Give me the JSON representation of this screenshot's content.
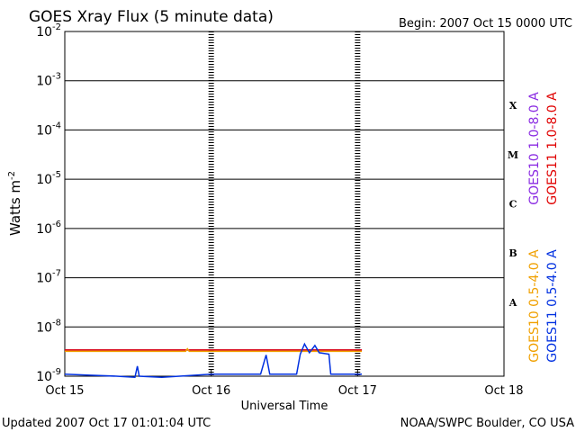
{
  "chart_data": {
    "type": "line",
    "title": "GOES Xray Flux (5 minute data)",
    "subtitle": "Begin:  2007 Oct 15 0000 UTC",
    "xlabel": "Universal Time",
    "ylabel": "Watts m",
    "ylabel_sup": "-2",
    "footer_left": "Updated 2007 Oct 17 01:01:04 UTC",
    "footer_right": "NOAA/SWPC Boulder, CO USA",
    "log_scale_y": true,
    "grid": true,
    "xlim": [
      0,
      72
    ],
    "xticks": [
      {
        "value": 0,
        "label": "Oct 15"
      },
      {
        "value": 24,
        "label": "Oct 16"
      },
      {
        "value": 48,
        "label": "Oct 17"
      },
      {
        "value": 72,
        "label": "Oct 18"
      }
    ],
    "ylim": [
      1e-09,
      0.01
    ],
    "yticks": [
      {
        "value": 1e-09,
        "label": "10",
        "sup": "-9"
      },
      {
        "value": 1e-08,
        "label": "10",
        "sup": "-8"
      },
      {
        "value": 1e-07,
        "label": "10",
        "sup": "-7"
      },
      {
        "value": 1e-06,
        "label": "10",
        "sup": "-6"
      },
      {
        "value": 1e-05,
        "label": "10",
        "sup": "-5"
      },
      {
        "value": 0.0001,
        "label": "10",
        "sup": "-4"
      },
      {
        "value": 0.001,
        "label": "10",
        "sup": "-3"
      },
      {
        "value": 0.01,
        "label": "10",
        "sup": "-2"
      }
    ],
    "class_labels": [
      {
        "value": 1e-08,
        "label": "A"
      },
      {
        "value": 1e-07,
        "label": "B"
      },
      {
        "value": 1e-06,
        "label": "C"
      },
      {
        "value": 1e-05,
        "label": "M"
      },
      {
        "value": 0.0001,
        "label": "X"
      }
    ],
    "series": [
      {
        "name": "GOES10 1.0-8.0 A",
        "color": "#8a2be2",
        "legend_group": "long",
        "x": [
          0,
          48.7
        ],
        "values": [
          3.4e-09,
          3.4e-09
        ]
      },
      {
        "name": "GOES11 1.0-8.0 A",
        "color": "#e00000",
        "legend_group": "long",
        "x": [
          0,
          48.7
        ],
        "values": [
          3.4e-09,
          3.4e-09
        ]
      },
      {
        "name": "GOES10 0.5-4.0 A",
        "color": "#f0a000",
        "legend_group": "short",
        "x": [
          0,
          19.8,
          20.1,
          20.4,
          48.7
        ],
        "values": [
          3.2e-09,
          3.2e-09,
          3.6e-09,
          3.2e-09,
          3.2e-09
        ]
      },
      {
        "name": "GOES11 0.5-4.0 A",
        "color": "#0030e0",
        "legend_group": "short",
        "x": [
          0,
          4.1,
          8.5,
          11.5,
          11.9,
          12.2,
          15.9,
          24,
          32.1,
          33,
          33.6,
          38,
          38.6,
          39.3,
          40.1,
          41,
          41.7,
          43.3,
          43.6,
          48.7
        ],
        "values": [
          1.1e-09,
          1.05e-09,
          1e-09,
          9.5e-10,
          1.6e-09,
          1e-09,
          9.5e-10,
          1.1e-09,
          1.1e-09,
          2.7e-09,
          1.1e-09,
          1.1e-09,
          2.8e-09,
          4.5e-09,
          3e-09,
          4.2e-09,
          3e-09,
          2.8e-09,
          1.1e-09,
          1.1e-09
        ]
      }
    ]
  }
}
